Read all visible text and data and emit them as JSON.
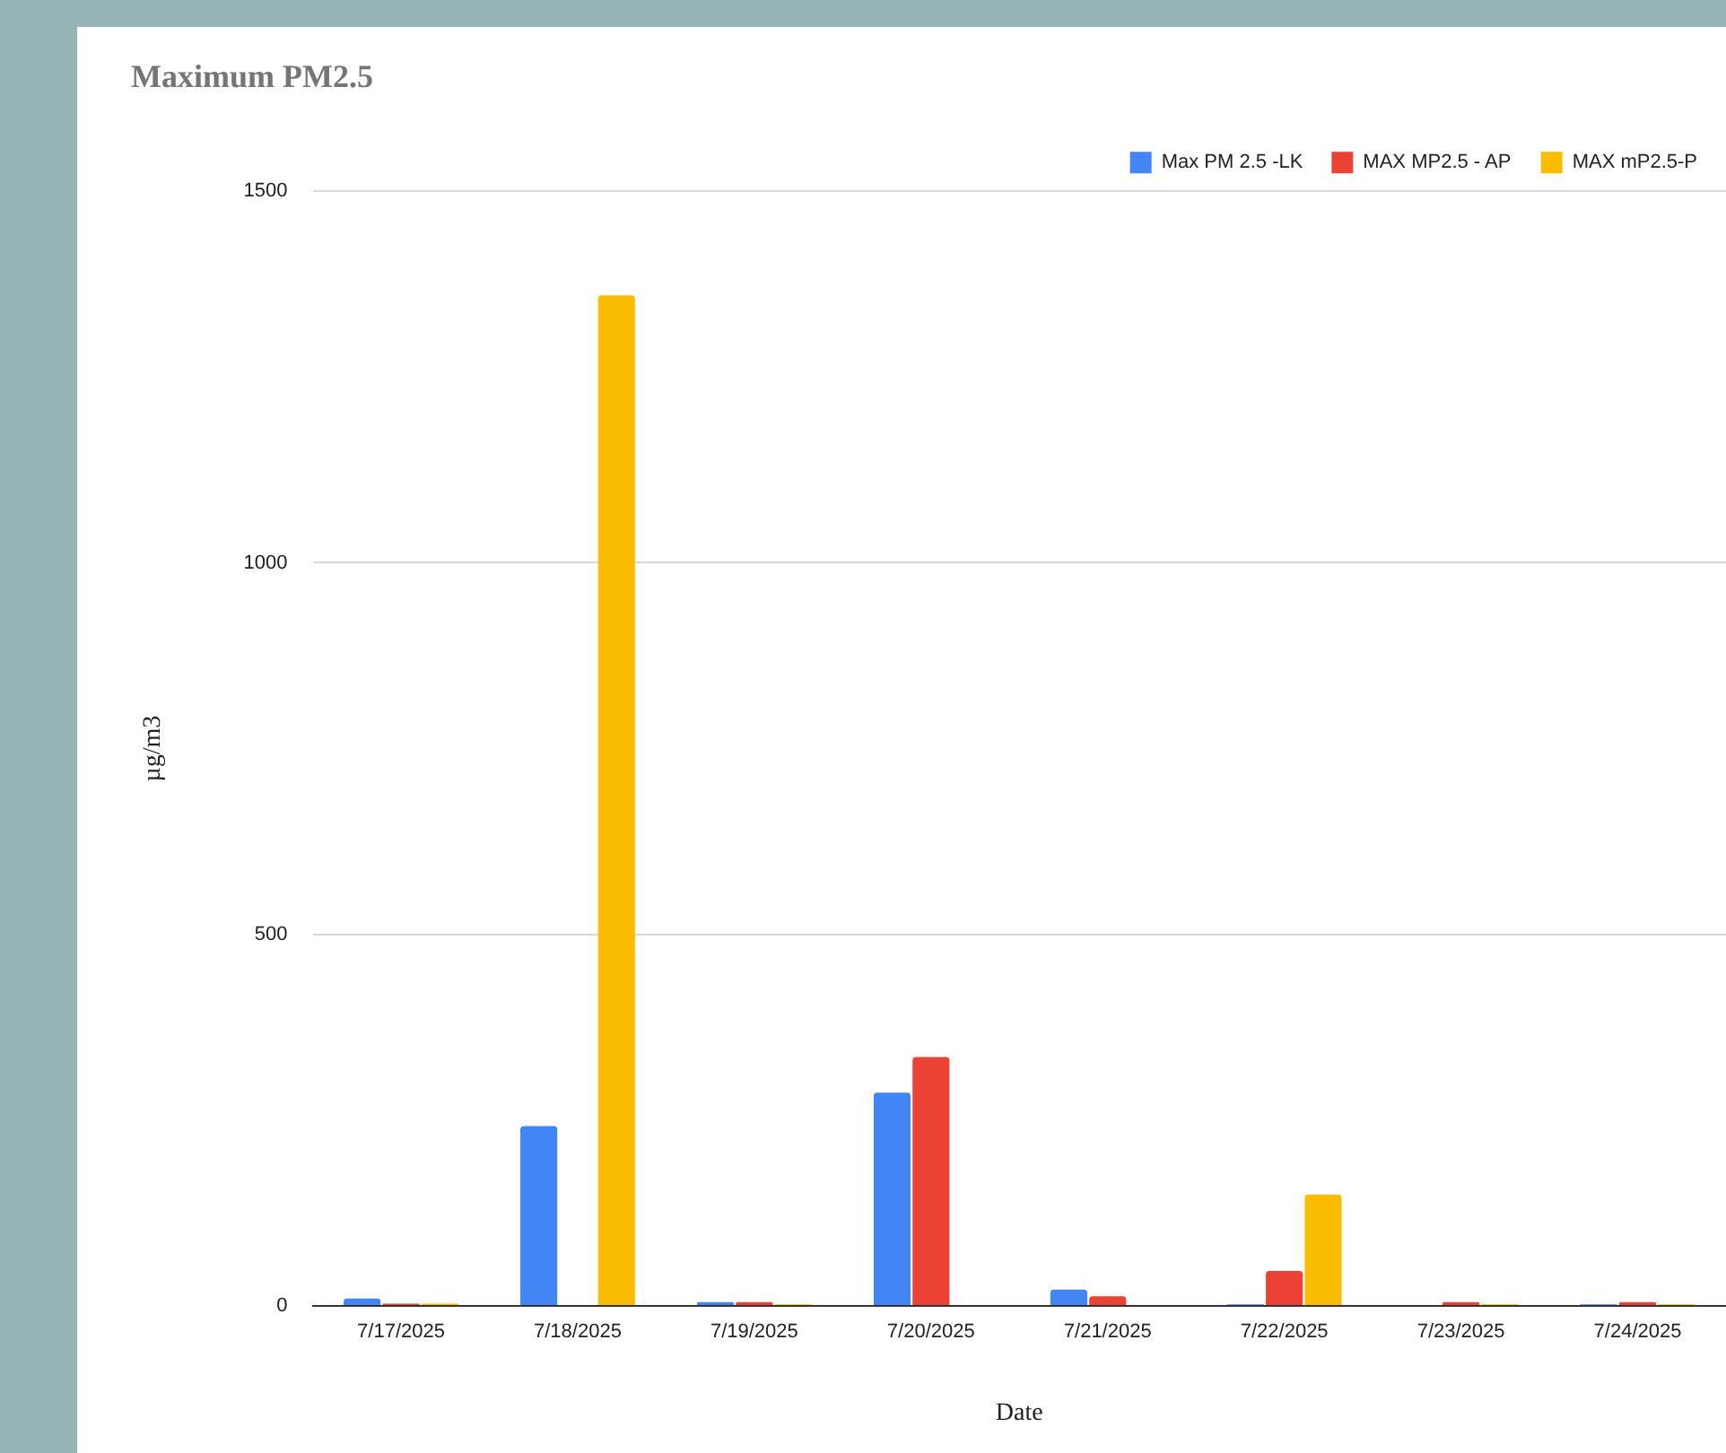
{
  "chart_data": {
    "type": "bar",
    "title": "Maximum PM2.5",
    "xlabel": "Date",
    "ylabel": "µg/m3",
    "categories": [
      "7/17/2025",
      "7/18/2025",
      "7/19/2025",
      "7/20/2025",
      "7/21/2025",
      "7/22/2025",
      "7/23/2025",
      "7/24/2025"
    ],
    "series": [
      {
        "name": "Max PM 2.5 -LK",
        "color": "#4285f4",
        "values": [
          10,
          242,
          5,
          287,
          22,
          2,
          0,
          2
        ]
      },
      {
        "name": "MAX MP2.5 - AP",
        "color": "#ea4335",
        "values": [
          3,
          0,
          5,
          335,
          13,
          47,
          5,
          5
        ]
      },
      {
        "name": "MAX mP2.5-P",
        "color": "#fbbc04",
        "values": [
          3,
          1360,
          2,
          0,
          0,
          150,
          2,
          2
        ]
      }
    ],
    "ylim": [
      0,
      1500
    ],
    "yticks": [
      0,
      500,
      1000,
      1500
    ],
    "grid": "y",
    "legend": "top right"
  }
}
